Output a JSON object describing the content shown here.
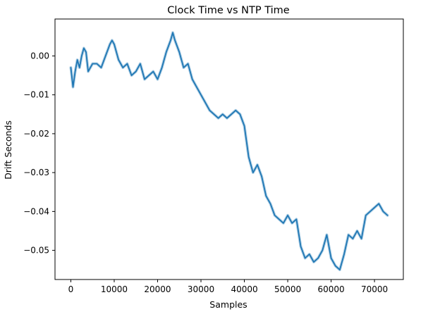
{
  "chart_data": {
    "type": "line",
    "title": "Clock Time vs NTP Time",
    "xlabel": "Samples",
    "ylabel": "Drift Seconds",
    "xlim": [
      -3650,
      76650
    ],
    "ylim": [
      -0.0575,
      0.0095
    ],
    "xticks": [
      0,
      10000,
      20000,
      30000,
      40000,
      50000,
      60000,
      70000
    ],
    "xtick_labels": [
      "0",
      "10000",
      "20000",
      "30000",
      "40000",
      "50000",
      "60000",
      "70000"
    ],
    "yticks": [
      0.0,
      -0.01,
      -0.02,
      -0.03,
      -0.04,
      -0.05
    ],
    "ytick_labels": [
      "0.00",
      "−0.01",
      "−0.02",
      "−0.03",
      "−0.04",
      "−0.05"
    ],
    "grid": false,
    "legend": false,
    "series": [
      {
        "color": "#1f77b4",
        "x": [
          0,
          500,
          1000,
          1500,
          2000,
          2500,
          3000,
          3500,
          4000,
          5000,
          6000,
          7000,
          8000,
          9000,
          9500,
          10000,
          11000,
          12000,
          13000,
          14000,
          15000,
          16000,
          17000,
          18000,
          19000,
          20000,
          21000,
          22000,
          23000,
          23500,
          24000,
          25000,
          26000,
          27000,
          28000,
          29000,
          30000,
          31000,
          32000,
          33000,
          34000,
          35000,
          36000,
          37000,
          38000,
          39000,
          40000,
          41000,
          42000,
          43000,
          44000,
          45000,
          46000,
          47000,
          48000,
          49000,
          50000,
          51000,
          52000,
          53000,
          54000,
          55000,
          56000,
          57000,
          58000,
          59000,
          60000,
          61000,
          62000,
          63000,
          64000,
          65000,
          66000,
          67000,
          68000,
          69000,
          70000,
          71000,
          72000,
          73000
        ],
        "y": [
          -0.003,
          -0.008,
          -0.004,
          -0.001,
          -0.003,
          0.0,
          0.002,
          0.001,
          -0.004,
          -0.002,
          -0.002,
          -0.003,
          0.0,
          0.003,
          0.004,
          0.003,
          -0.001,
          -0.003,
          -0.002,
          -0.005,
          -0.004,
          -0.002,
          -0.006,
          -0.005,
          -0.004,
          -0.006,
          -0.003,
          0.001,
          0.004,
          0.006,
          0.004,
          0.001,
          -0.003,
          -0.002,
          -0.006,
          -0.008,
          -0.01,
          -0.012,
          -0.014,
          -0.015,
          -0.016,
          -0.015,
          -0.016,
          -0.015,
          -0.014,
          -0.015,
          -0.018,
          -0.026,
          -0.03,
          -0.028,
          -0.031,
          -0.036,
          -0.038,
          -0.041,
          -0.042,
          -0.043,
          -0.041,
          -0.043,
          -0.042,
          -0.049,
          -0.052,
          -0.051,
          -0.053,
          -0.052,
          -0.05,
          -0.046,
          -0.052,
          -0.054,
          -0.055,
          -0.051,
          -0.046,
          -0.047,
          -0.045,
          -0.047,
          -0.041,
          -0.04,
          -0.039,
          -0.038,
          -0.04,
          -0.041
        ]
      }
    ]
  }
}
